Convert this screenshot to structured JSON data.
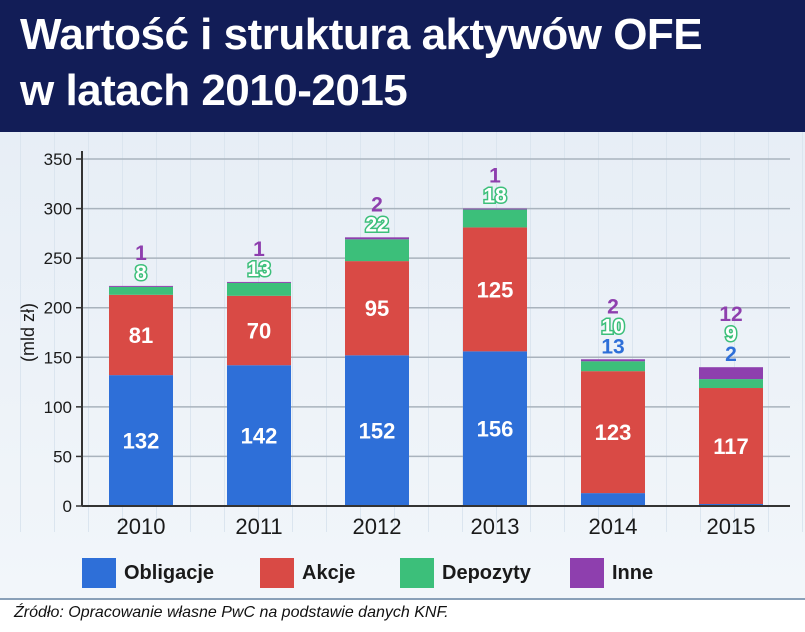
{
  "header": {
    "title_line_1": "Wartość i struktura aktywów OFE",
    "title_line_2": "w latach 2010-2015"
  },
  "source_note": "Źródło: Opracowanie własne PwC na podstawie danych KNF.",
  "colors": {
    "header_bg": "#121d57",
    "obligacje": "#2e6fd8",
    "akcje": "#d94a45",
    "depozyty": "#3cbf7a",
    "inne": "#8e3fae"
  },
  "chart_data": {
    "type": "bar",
    "stacked": true,
    "categories": [
      "2010",
      "2011",
      "2012",
      "2013",
      "2014",
      "2015"
    ],
    "ylabel": "(mld zł)",
    "ylim": [
      0,
      350
    ],
    "yticks": [
      "0",
      "50",
      "100",
      "150",
      "200",
      "250",
      "300",
      "350"
    ],
    "grid": true,
    "legend_position": "bottom",
    "series": [
      {
        "name": "Obligacje",
        "color": "#2e6fd8",
        "values": [
          132,
          142,
          152,
          156,
          13,
          2
        ]
      },
      {
        "name": "Akcje",
        "color": "#d94a45",
        "values": [
          81,
          70,
          95,
          125,
          123,
          117
        ]
      },
      {
        "name": "Depozyty",
        "color": "#3cbf7a",
        "values": [
          8,
          13,
          22,
          18,
          10,
          9
        ]
      },
      {
        "name": "Inne",
        "color": "#8e3fae",
        "values": [
          1,
          1,
          2,
          1,
          2,
          12
        ]
      }
    ]
  }
}
